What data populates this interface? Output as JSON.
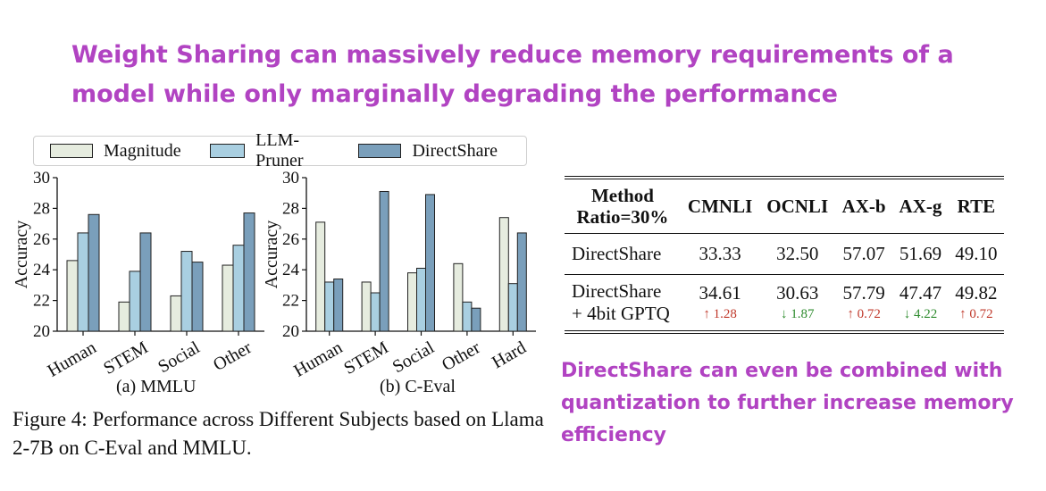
{
  "headline": "Weight Sharing can massively reduce memory requirements of a model while only marginally degrading the performance",
  "legend": [
    {
      "label": "Magnitude",
      "color": "#e6ecdf"
    },
    {
      "label": "LLM-Pruner",
      "color": "#a9cfe1"
    },
    {
      "label": "DirectShare",
      "color": "#7a9fbb"
    }
  ],
  "chart_data": [
    {
      "type": "bar",
      "caption": "(a) MMLU",
      "ylabel": "Accuracy",
      "ylim": [
        20,
        30
      ],
      "yticks": [
        20,
        22,
        24,
        26,
        28,
        30
      ],
      "categories": [
        "Human",
        "STEM",
        "Social",
        "Other"
      ],
      "series": [
        {
          "name": "Magnitude",
          "values": [
            24.6,
            21.9,
            22.3,
            24.3
          ]
        },
        {
          "name": "LLM-Pruner",
          "values": [
            26.4,
            23.9,
            25.2,
            25.6
          ]
        },
        {
          "name": "DirectShare",
          "values": [
            27.6,
            26.4,
            24.5,
            27.7
          ]
        }
      ]
    },
    {
      "type": "bar",
      "caption": "(b) C-Eval",
      "ylabel": "Accuracy",
      "ylim": [
        20,
        30
      ],
      "yticks": [
        20,
        22,
        24,
        26,
        28,
        30
      ],
      "categories": [
        "Human",
        "STEM",
        "Social",
        "Other",
        "Hard"
      ],
      "series": [
        {
          "name": "Magnitude",
          "values": [
            27.1,
            23.2,
            23.8,
            24.4,
            27.4
          ]
        },
        {
          "name": "LLM-Pruner",
          "values": [
            23.2,
            22.5,
            24.1,
            21.9,
            23.1
          ]
        },
        {
          "name": "DirectShare",
          "values": [
            23.4,
            29.1,
            28.9,
            21.5,
            26.4
          ]
        }
      ]
    },
    {
      "type": "table",
      "columns": [
        "Method Ratio=30%",
        "CMNLI",
        "OCNLI",
        "AX-b",
        "AX-g",
        "RTE"
      ],
      "rows": [
        {
          "method": "DirectShare",
          "values": [
            "33.33",
            "32.50",
            "57.07",
            "51.69",
            "49.10"
          ]
        },
        {
          "method": "DirectShare + 4bit GPTQ",
          "values": [
            "34.61",
            "30.63",
            "57.79",
            "47.47",
            "49.82"
          ],
          "deltas": [
            "↑ 1.28",
            "↓ 1.87",
            "↑ 0.72",
            "↓ 4.22",
            "↑ 0.72"
          ]
        }
      ]
    }
  ],
  "table": {
    "head_method_line1": "Method",
    "head_method_line2": "Ratio=30%",
    "headers": [
      "CMNLI",
      "OCNLI",
      "AX-b",
      "AX-g",
      "RTE"
    ],
    "row1_method": "DirectShare",
    "row1_values": [
      "33.33",
      "32.50",
      "57.07",
      "51.69",
      "49.10"
    ],
    "row2_method_line1": "DirectShare",
    "row2_method_line2": "+ 4bit GPTQ",
    "row2_values": [
      "34.61",
      "30.63",
      "57.79",
      "47.47",
      "49.82"
    ],
    "row2_deltas": [
      "↑ 1.28",
      "↓ 1.87",
      "↑ 0.72",
      "↓ 4.22",
      "↑ 0.72"
    ],
    "row2_delta_dirs": [
      "up",
      "down",
      "up",
      "down",
      "up"
    ]
  },
  "figure_caption": "Figure 4: Performance across Different Subjects based on Llama 2-7B on C-Eval and MMLU.",
  "note": "DirectShare can even be combined with quantization to further increase memory efficiency",
  "colors": {
    "accent": "#b143c2",
    "up": "#c0392b",
    "down": "#2e8b2e"
  }
}
